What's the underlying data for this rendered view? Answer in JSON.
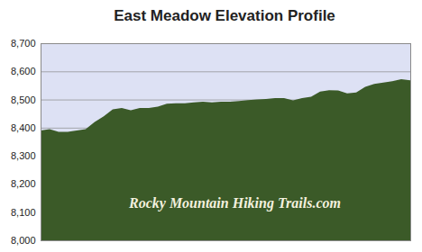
{
  "chart_data": {
    "type": "area",
    "title": "East Meadow Elevation Profile",
    "categories": [
      null,
      null,
      null,
      null,
      null,
      null,
      null,
      null,
      null,
      null,
      null,
      null,
      null,
      null,
      null,
      null,
      null,
      null,
      null,
      null,
      null,
      null,
      null,
      null,
      null,
      null,
      null,
      null,
      null,
      null,
      null,
      null,
      null,
      null,
      null,
      null,
      null,
      null,
      null,
      null,
      null,
      null
    ],
    "values": [
      8390,
      8395,
      8385,
      8385,
      8390,
      8395,
      8420,
      8440,
      8465,
      8470,
      8462,
      8470,
      8470,
      8475,
      8485,
      8487,
      8487,
      8490,
      8492,
      8490,
      8492,
      8492,
      8495,
      8498,
      8500,
      8502,
      8505,
      8505,
      8497,
      8505,
      8510,
      8528,
      8533,
      8532,
      8522,
      8525,
      8545,
      8555,
      8560,
      8565,
      8572,
      8568
    ],
    "color": "#3b5a28",
    "ylim": [
      8000,
      8700
    ],
    "yticks": [
      8000,
      8100,
      8200,
      8300,
      8400,
      8500,
      8600,
      8700
    ],
    "grid": true,
    "tick_labels": "y",
    "annotation": "Rocky Mountain Hiking Trails.com"
  }
}
